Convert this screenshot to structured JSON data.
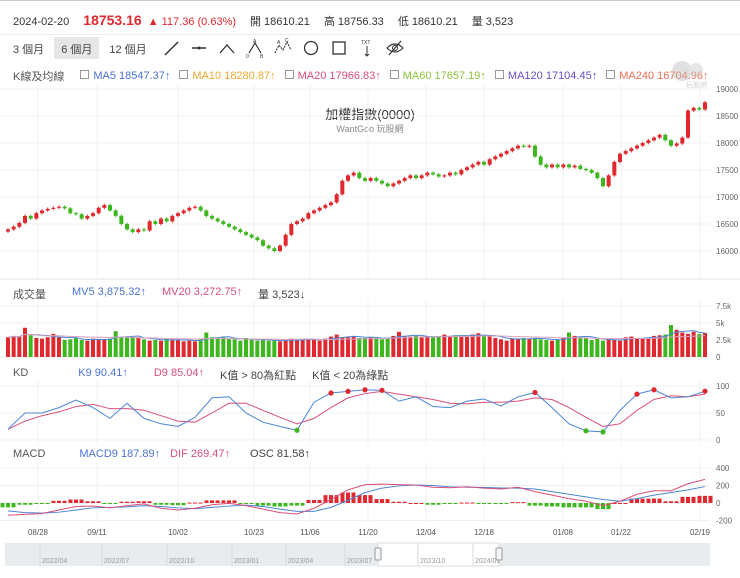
{
  "header": {
    "date": "2024-02-20",
    "price": "18753.16",
    "change": "▲ 117.36 (0.63%)",
    "open_label": "開",
    "open": "18610.21",
    "high_label": "高",
    "high": "18756.33",
    "low_label": "低",
    "low": "18610.21",
    "vol_label": "量",
    "vol": "3,523"
  },
  "toolbar": {
    "ranges": [
      "3 個月",
      "6 個月",
      "12 個月"
    ],
    "active_range": "6 個月",
    "tools": [
      "trend-line-icon",
      "horizontal-line-icon",
      "angle-icon",
      "abcd-pattern-icon",
      "abc-pattern-icon",
      "circle-icon",
      "rectangle-icon",
      "text-arrow-icon",
      "hide-eye-icon"
    ],
    "txt": "TXT"
  },
  "ma_row": {
    "label": "K線及均線",
    "items": [
      {
        "name": "MA5",
        "value": "18547.37↑",
        "color": "#4a74d6"
      },
      {
        "name": "MA10",
        "value": "18280.87↑",
        "color": "#f0a830"
      },
      {
        "name": "MA20",
        "value": "17966.83↑",
        "color": "#d9507a"
      },
      {
        "name": "MA60",
        "value": "17657.19↑",
        "color": "#8cc43c"
      },
      {
        "name": "MA120",
        "value": "17104.45↑",
        "color": "#6a4fc9"
      },
      {
        "name": "MA240",
        "value": "16704.96↑",
        "color": "#f07050"
      }
    ]
  },
  "main": {
    "title": "加權指數(0000)",
    "subtitle": "WantGoo 玩股網",
    "logo_text": "玩股網"
  },
  "volume_panel": {
    "label": "成交量",
    "mv5": "MV5 3,875.32↑",
    "mv20": "MV20 3,272.75↑",
    "vol": "量 3,523↓"
  },
  "kd_panel": {
    "label": "KD",
    "k9": "K9 90.41↑",
    "d9": "D9 85.04↑",
    "note_red": "K值 > 80為紅點",
    "note_green": "K值 < 20為綠點"
  },
  "macd_panel": {
    "label": "MACD",
    "macd9": "MACD9 187.89↑",
    "dif": "DIF 269.47↑",
    "osc": "OSC 81.58↑"
  },
  "colors": {
    "up": "#e0292f",
    "down": "#3cb81e",
    "k": "#4a86d8",
    "d": "#d9507a"
  },
  "chart_data": [
    {
      "type": "candlestick",
      "title": "加權指數(0000)",
      "y_ticks": [
        16000,
        16500,
        17000,
        17500,
        18000,
        18500,
        19000
      ],
      "ylim": [
        16000,
        19000
      ],
      "x_ticks": [
        "08/28",
        "09/11",
        "10/02",
        "10/23",
        "11/06",
        "11/20",
        "12/04",
        "12/18",
        "01/08",
        "01/22",
        "02/19"
      ],
      "close": [
        16400,
        16450,
        16520,
        16650,
        16600,
        16700,
        16750,
        16780,
        16800,
        16820,
        16790,
        16700,
        16680,
        16600,
        16650,
        16700,
        16800,
        16850,
        16750,
        16650,
        16500,
        16400,
        16350,
        16400,
        16380,
        16550,
        16500,
        16600,
        16550,
        16650,
        16700,
        16750,
        16800,
        16820,
        16750,
        16650,
        16600,
        16550,
        16500,
        16450,
        16400,
        16350,
        16300,
        16250,
        16200,
        16100,
        16050,
        16000,
        16100,
        16300,
        16500,
        16550,
        16600,
        16700,
        16750,
        16800,
        16850,
        16900,
        17050,
        17300,
        17400,
        17450,
        17350,
        17300,
        17350,
        17300,
        17250,
        17200,
        17250,
        17300,
        17350,
        17400,
        17350,
        17400,
        17450,
        17420,
        17380,
        17400,
        17450,
        17420,
        17500,
        17550,
        17600,
        17650,
        17600,
        17700,
        17750,
        17800,
        17850,
        17900,
        17950,
        17930,
        17950,
        17750,
        17600,
        17550,
        17600,
        17550,
        17600,
        17550,
        17580,
        17520,
        17500,
        17450,
        17350,
        17200,
        17400,
        17650,
        17800,
        17850,
        17900,
        17950,
        18000,
        18050,
        18100,
        18150,
        18050,
        17950,
        17990,
        18100,
        18600,
        18650,
        18620,
        18753.16
      ]
    },
    {
      "type": "bar",
      "title": "成交量",
      "y_ticks": [
        "0",
        "2.5k",
        "5k",
        "7.5k"
      ],
      "ylim": [
        0,
        7500
      ],
      "values": [
        2900,
        3100,
        3000,
        4300,
        3200,
        2800,
        2700,
        2900,
        3400,
        2900,
        2500,
        2600,
        2800,
        2500,
        2400,
        2700,
        2600,
        2600,
        2700,
        3800,
        2900,
        2900,
        2900,
        2900,
        2600,
        2400,
        2500,
        2400,
        2700,
        2600,
        2500,
        2300,
        2400,
        2300,
        2600,
        3600,
        2900,
        2800,
        2900,
        2700,
        2600,
        2400,
        2800,
        2600,
        2400,
        2500,
        2400,
        2400,
        2300,
        2500,
        2700,
        2500,
        2500,
        2700,
        2500,
        2400,
        2700,
        3000,
        3300,
        2900,
        2900,
        3100,
        2800,
        2800,
        2900,
        2800,
        2600,
        2800,
        3100,
        3700,
        3100,
        3000,
        3100,
        3000,
        3000,
        2900,
        3000,
        3300,
        3100,
        3200,
        3100,
        3000,
        3300,
        3500,
        3100,
        3000,
        2800,
        2600,
        2400,
        2700,
        2700,
        2800,
        2700,
        2800,
        2600,
        2500,
        2400,
        2500,
        2800,
        3600,
        3100,
        2900,
        2800,
        2500,
        2700,
        2400,
        2600,
        2500,
        2400,
        2900,
        3000,
        2800,
        2700,
        2800,
        3100,
        3200,
        3300,
        4700,
        4000,
        3600,
        3400,
        3700,
        3400,
        3523
      ]
    },
    {
      "type": "line",
      "title": "KD",
      "y_ticks": [
        0,
        50,
        100
      ],
      "ylim": [
        0,
        100
      ],
      "series": [
        {
          "name": "K9",
          "values": [
            20,
            50,
            50,
            60,
            74,
            60,
            40,
            68,
            40,
            30,
            25,
            42,
            78,
            80,
            50,
            33,
            25,
            18,
            70,
            87,
            90,
            93,
            92,
            72,
            80,
            62,
            60,
            72,
            76,
            63,
            80,
            88,
            60,
            30,
            17,
            15,
            55,
            85,
            93,
            78,
            80,
            90.41
          ]
        },
        {
          "name": "D9",
          "values": [
            20,
            35,
            45,
            52,
            62,
            66,
            58,
            58,
            55,
            45,
            35,
            33,
            50,
            68,
            68,
            55,
            42,
            30,
            40,
            60,
            78,
            86,
            90,
            85,
            80,
            75,
            68,
            67,
            70,
            70,
            72,
            78,
            75,
            60,
            42,
            25,
            30,
            55,
            75,
            82,
            80,
            85.04
          ]
        }
      ]
    },
    {
      "type": "line",
      "title": "MACD",
      "y_ticks": [
        -200,
        0,
        200,
        400
      ],
      "ylim": [
        -200,
        400
      ],
      "series": [
        {
          "name": "DIF",
          "values": [
            -140,
            -130,
            -120,
            -80,
            -40,
            -35,
            -55,
            -30,
            -10,
            -60,
            -80,
            -60,
            -20,
            -5,
            -30,
            -70,
            -110,
            -125,
            -60,
            40,
            150,
            210,
            215,
            210,
            205,
            180,
            175,
            185,
            170,
            160,
            180,
            130,
            90,
            50,
            20,
            -30,
            20,
            100,
            140,
            140,
            220,
            269.47
          ]
        },
        {
          "name": "MACD9",
          "values": [
            -90,
            -110,
            -115,
            -105,
            -80,
            -55,
            -50,
            -45,
            -30,
            -40,
            -55,
            -65,
            -50,
            -35,
            -25,
            -40,
            -70,
            -95,
            -95,
            -50,
            30,
            120,
            170,
            195,
            205,
            200,
            185,
            180,
            178,
            172,
            170,
            160,
            130,
            100,
            70,
            40,
            20,
            50,
            90,
            120,
            150,
            187.89
          ]
        }
      ]
    }
  ],
  "navigator": {
    "labels": [
      "2022/04",
      "2022/07",
      "2022/10",
      "2023/01",
      "2023/04",
      "2023/07",
      "2023/10",
      "2024/01"
    ]
  }
}
